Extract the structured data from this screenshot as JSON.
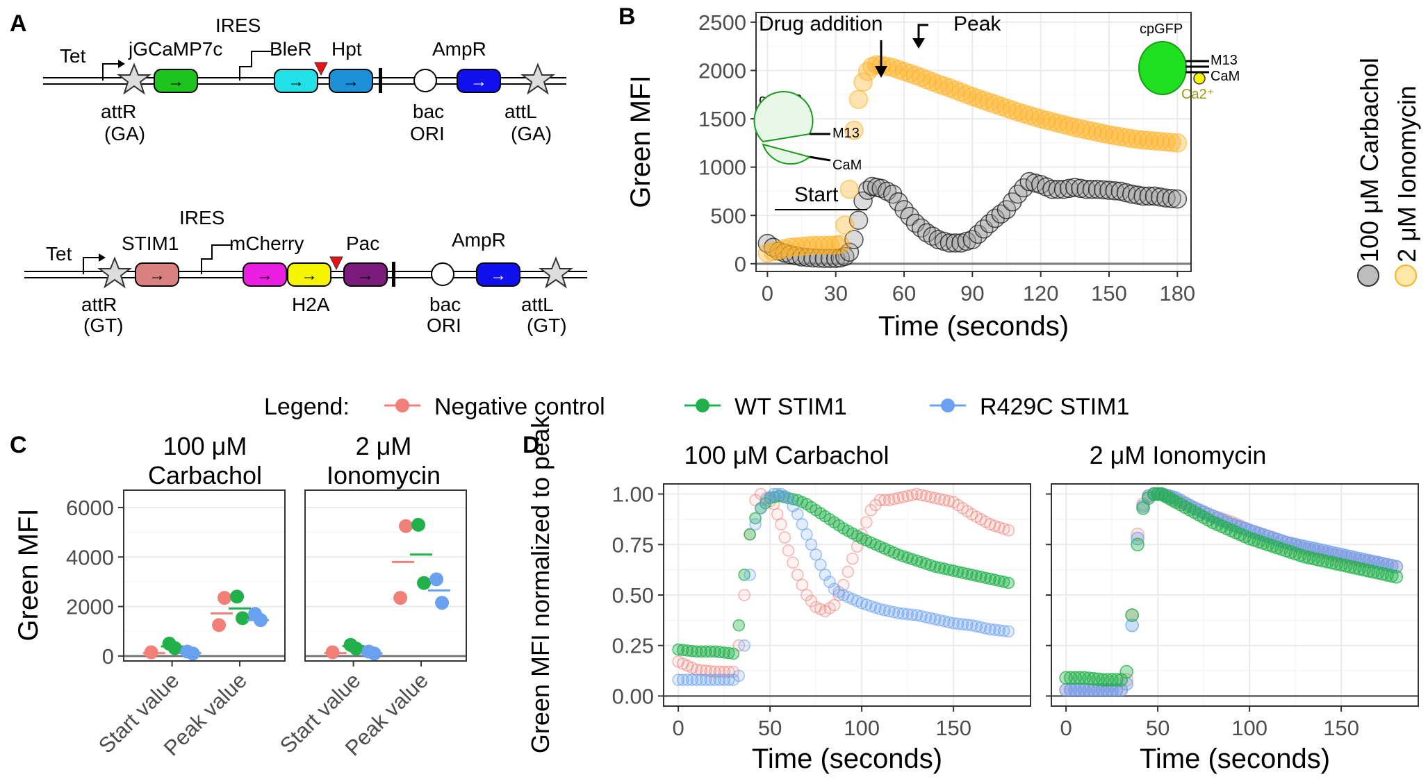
{
  "panels": {
    "A": "A",
    "B": "B",
    "C": "C",
    "D": "D"
  },
  "constructs": [
    {
      "tet": "Tet",
      "ires": "IRES",
      "genes": [
        {
          "name": "jGCaMP7c",
          "fill": "#1ec41e",
          "color": "#1a9a1a"
        },
        {
          "name": "BleR",
          "fill": "#22e0e8",
          "color": "#1a7f1a"
        },
        {
          "name": "Hpt",
          "fill": "#1c8fd9",
          "color": "#1a8f8f"
        },
        {
          "name": "AmpR",
          "fill": "#1010ee",
          "color": "#1010ee"
        }
      ],
      "labels": {
        "attR": "attR",
        "attR_sub": "(GA)",
        "bac": "bac",
        "ori": "ORI",
        "attL": "attL",
        "attL_sub": "(GA)"
      }
    },
    {
      "tet": "Tet",
      "ires": "IRES",
      "genes": [
        {
          "name": "STIM1",
          "fill": "#d98080",
          "color": "#b03030"
        },
        {
          "name": "mCherry",
          "fill": "#e91ee0",
          "color": "#e91ee0"
        },
        {
          "name": "H2A",
          "fill": "#f5f500",
          "color": "#9a9a10"
        },
        {
          "name": "Pac",
          "fill": "#7a1a7a",
          "color": "#7a1a7a"
        },
        {
          "name": "AmpR",
          "fill": "#1010ee",
          "color": "#1010ee"
        }
      ],
      "labels": {
        "attR": "attR",
        "attR_sub": "(GT)",
        "bac": "bac",
        "ori": "ORI",
        "attL": "attL",
        "attL_sub": "(GT)"
      }
    }
  ],
  "panelB": {
    "annotations": {
      "drug": "Drug addition",
      "peak": "Peak",
      "start": "Start"
    },
    "inset": {
      "cpgfp": "cpGFP",
      "m13": "M13",
      "cam": "CaM",
      "ca": "Ca2⁺"
    }
  },
  "legend": {
    "title": "Legend:",
    "negative": "Negative control",
    "wt": "WT STIM1",
    "r429c": "R429C STIM1"
  },
  "colors": {
    "carbachol": "#2b2b2b",
    "ionomycin": "#ffb020",
    "negative": "#f08078",
    "wt": "#22b04a",
    "r429c": "#6aa0f0"
  },
  "chart_data": [
    {
      "id": "B",
      "type": "scatter",
      "xlabel": "Time (seconds)",
      "ylabel": "Green MFI",
      "xlim": [
        -5,
        186
      ],
      "ylim": [
        -80,
        2600
      ],
      "xticks": [
        0,
        30,
        60,
        90,
        120,
        150,
        180
      ],
      "yticks": [
        0,
        500,
        1000,
        1500,
        2000,
        2500
      ],
      "grid": true,
      "legend_position": "right",
      "series": [
        {
          "name": "100 μM Carbachol",
          "x": [
            0,
            5,
            10,
            15,
            20,
            25,
            30,
            32,
            34,
            36,
            38,
            40,
            42,
            44,
            46,
            50,
            55,
            60,
            65,
            70,
            75,
            80,
            85,
            90,
            95,
            100,
            105,
            110,
            115,
            120,
            125,
            130,
            135,
            140,
            145,
            150,
            155,
            160,
            165,
            170,
            175,
            180
          ],
          "y": [
            210,
            130,
            95,
            70,
            60,
            55,
            55,
            60,
            75,
            120,
            250,
            450,
            650,
            760,
            800,
            780,
            720,
            560,
            420,
            320,
            250,
            215,
            215,
            250,
            360,
            470,
            560,
            720,
            850,
            820,
            770,
            770,
            790,
            770,
            770,
            760,
            750,
            720,
            700,
            700,
            680,
            670
          ]
        },
        {
          "name": "2 μM Ionomycin",
          "x": [
            0,
            5,
            10,
            15,
            20,
            25,
            30,
            32,
            34,
            36,
            38,
            40,
            42,
            44,
            46,
            48,
            50,
            55,
            60,
            65,
            70,
            75,
            80,
            85,
            90,
            95,
            100,
            105,
            110,
            115,
            120,
            125,
            130,
            135,
            140,
            145,
            150,
            155,
            160,
            165,
            170,
            175,
            180
          ],
          "y": [
            110,
            140,
            170,
            180,
            190,
            190,
            195,
            200,
            400,
            770,
            1380,
            1700,
            1880,
            1990,
            2040,
            2060,
            2055,
            2030,
            1990,
            1950,
            1905,
            1860,
            1820,
            1775,
            1730,
            1690,
            1650,
            1610,
            1570,
            1535,
            1500,
            1470,
            1440,
            1410,
            1385,
            1360,
            1335,
            1315,
            1295,
            1280,
            1270,
            1260,
            1250
          ]
        }
      ]
    },
    {
      "id": "C1",
      "type": "scatter",
      "title": [
        "100 μM",
        "Carbachol"
      ],
      "ylabel": "Green MFI",
      "categories": [
        "Start value",
        "Peak value"
      ],
      "ylim": [
        -200,
        6700
      ],
      "yticks": [
        0,
        2000,
        4000,
        6000
      ],
      "grid": true,
      "series": [
        {
          "name": "Negative control",
          "points": [
            [
              0,
              150
            ],
            [
              1,
              2350
            ],
            [
              1,
              1250
            ]
          ],
          "means": [
            120,
            1720
          ]
        },
        {
          "name": "WT STIM1",
          "points": [
            [
              0,
              500
            ],
            [
              0,
              320
            ],
            [
              1,
              2400
            ],
            [
              1,
              1530
            ]
          ],
          "means": [
            390,
            1920
          ]
        },
        {
          "name": "R429C STIM1",
          "points": [
            [
              0,
              180
            ],
            [
              0,
              100
            ],
            [
              1,
              1700
            ],
            [
              1,
              1450
            ]
          ],
          "means": [
            120,
            1450
          ]
        }
      ]
    },
    {
      "id": "C2",
      "type": "scatter",
      "title": [
        "2 μM",
        "Ionomycin"
      ],
      "categories": [
        "Start value",
        "Peak value"
      ],
      "ylim": [
        -200,
        6700
      ],
      "yticks": [
        0,
        2000,
        4000,
        6000
      ],
      "grid": true,
      "series": [
        {
          "name": "Negative control",
          "points": [
            [
              0,
              150
            ],
            [
              1,
              5250
            ],
            [
              1,
              2350
            ]
          ],
          "means": [
            120,
            3800
          ]
        },
        {
          "name": "WT STIM1",
          "points": [
            [
              0,
              450
            ],
            [
              0,
              300
            ],
            [
              1,
              5300
            ],
            [
              1,
              2950
            ]
          ],
          "means": [
            400,
            4100
          ]
        },
        {
          "name": "R429C STIM1",
          "points": [
            [
              0,
              180
            ],
            [
              0,
              100
            ],
            [
              1,
              3100
            ],
            [
              1,
              2150
            ]
          ],
          "means": [
            110,
            2650
          ]
        }
      ]
    },
    {
      "id": "D1",
      "type": "scatter",
      "title": "100 μM Carbachol",
      "xlabel": "Time (seconds)",
      "ylabel": "Green MFI normalized to peak",
      "xlim": [
        -8,
        192
      ],
      "ylim": [
        -0.05,
        1.05
      ],
      "xticks": [
        0,
        50,
        100,
        150
      ],
      "yticks": [
        0,
        0.25,
        0.5,
        0.75,
        1.0
      ],
      "grid": true,
      "series": [
        {
          "name": "Negative control",
          "x": [
            0,
            10,
            20,
            30,
            33,
            36,
            39,
            42,
            45,
            48,
            52,
            56,
            60,
            65,
            70,
            75,
            80,
            85,
            90,
            95,
            100,
            105,
            110,
            115,
            120,
            130,
            140,
            150,
            160,
            170,
            180
          ],
          "y": [
            0.17,
            0.13,
            0.12,
            0.12,
            0.25,
            0.5,
            0.8,
            0.97,
            1.0,
            0.98,
            0.95,
            0.85,
            0.72,
            0.6,
            0.5,
            0.44,
            0.42,
            0.45,
            0.55,
            0.68,
            0.8,
            0.92,
            0.97,
            0.97,
            0.98,
            1.0,
            0.98,
            0.96,
            0.9,
            0.85,
            0.82
          ]
        },
        {
          "name": "WT STIM1",
          "x": [
            0,
            10,
            20,
            30,
            33,
            36,
            39,
            42,
            45,
            50,
            55,
            60,
            65,
            70,
            80,
            90,
            100,
            110,
            120,
            130,
            140,
            150,
            160,
            170,
            180
          ],
          "y": [
            0.23,
            0.22,
            0.22,
            0.21,
            0.35,
            0.6,
            0.8,
            0.88,
            0.93,
            0.98,
            0.99,
            0.98,
            0.97,
            0.95,
            0.89,
            0.83,
            0.78,
            0.74,
            0.7,
            0.67,
            0.64,
            0.62,
            0.6,
            0.58,
            0.56
          ]
        },
        {
          "name": "R429C STIM1",
          "x": [
            0,
            10,
            20,
            30,
            33,
            36,
            39,
            42,
            45,
            48,
            52,
            56,
            60,
            65,
            70,
            75,
            80,
            85,
            90,
            95,
            100,
            110,
            120,
            130,
            140,
            150,
            160,
            170,
            180
          ],
          "y": [
            0.08,
            0.08,
            0.08,
            0.08,
            0.1,
            0.25,
            0.6,
            0.85,
            0.93,
            0.97,
            1.0,
            1.0,
            0.98,
            0.9,
            0.8,
            0.7,
            0.6,
            0.53,
            0.5,
            0.48,
            0.46,
            0.43,
            0.41,
            0.4,
            0.38,
            0.36,
            0.35,
            0.33,
            0.32
          ]
        }
      ]
    },
    {
      "id": "D2",
      "type": "scatter",
      "title": "2 μM Ionomycin",
      "xlabel": "Time (seconds)",
      "xlim": [
        -8,
        192
      ],
      "ylim": [
        -0.05,
        1.05
      ],
      "xticks": [
        0,
        50,
        100,
        150
      ],
      "yticks": [
        0,
        0.25,
        0.5,
        0.75,
        1.0
      ],
      "grid": true,
      "series": [
        {
          "name": "Negative control",
          "x": [
            0,
            10,
            20,
            30,
            33,
            36,
            39,
            42,
            45,
            48,
            52,
            56,
            60,
            70,
            80,
            90,
            100,
            110,
            120,
            130,
            140,
            150,
            160,
            170,
            180
          ],
          "y": [
            0.03,
            0.03,
            0.03,
            0.03,
            0.08,
            0.4,
            0.8,
            0.95,
            0.99,
            1.0,
            1.0,
            0.99,
            0.97,
            0.93,
            0.89,
            0.86,
            0.82,
            0.79,
            0.76,
            0.73,
            0.71,
            0.69,
            0.67,
            0.66,
            0.64
          ]
        },
        {
          "name": "WT STIM1",
          "x": [
            0,
            10,
            20,
            30,
            33,
            36,
            39,
            42,
            45,
            48,
            52,
            56,
            60,
            70,
            80,
            90,
            100,
            110,
            120,
            130,
            140,
            150,
            160,
            170,
            180
          ],
          "y": [
            0.09,
            0.09,
            0.08,
            0.08,
            0.12,
            0.4,
            0.75,
            0.93,
            0.98,
            1.0,
            1.0,
            0.98,
            0.96,
            0.91,
            0.86,
            0.82,
            0.78,
            0.75,
            0.72,
            0.69,
            0.67,
            0.65,
            0.63,
            0.61,
            0.59
          ]
        },
        {
          "name": "R429C STIM1",
          "x": [
            0,
            10,
            20,
            30,
            33,
            36,
            39,
            42,
            45,
            48,
            52,
            56,
            60,
            70,
            80,
            90,
            100,
            110,
            120,
            130,
            140,
            150,
            160,
            170,
            180
          ],
          "y": [
            0.03,
            0.03,
            0.03,
            0.03,
            0.06,
            0.35,
            0.78,
            0.94,
            0.99,
            1.0,
            1.0,
            0.99,
            0.98,
            0.93,
            0.89,
            0.85,
            0.82,
            0.79,
            0.76,
            0.74,
            0.72,
            0.7,
            0.68,
            0.66,
            0.64
          ]
        }
      ]
    }
  ]
}
